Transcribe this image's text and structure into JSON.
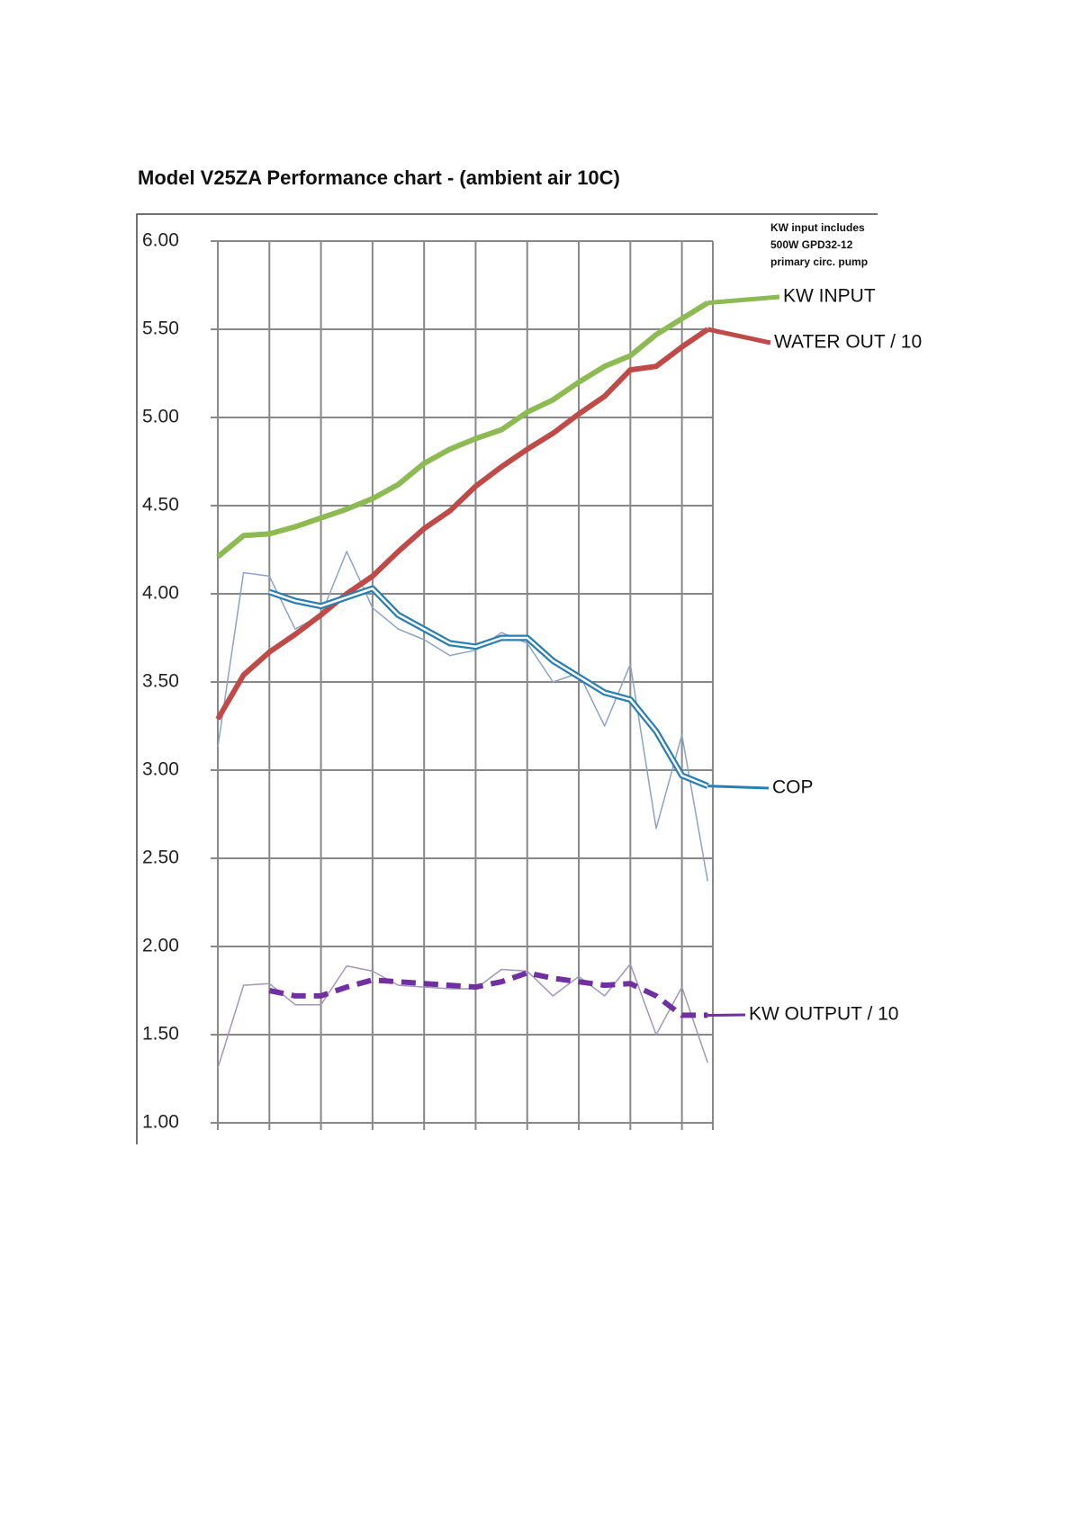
{
  "chart_data": {
    "type": "line",
    "title": "Model V25ZA Performance chart - (ambient air 10C)",
    "annotation": [
      "KW input includes",
      "500W GPD32-12",
      "primary circ. pump"
    ],
    "x": [
      0,
      0.5,
      1,
      1.5,
      2,
      2.5,
      3,
      3.5,
      4,
      4.5,
      5,
      5.5,
      6,
      6.5,
      7,
      7.5,
      8,
      8.5,
      9,
      9.5
    ],
    "xlim": [
      0,
      9.6
    ],
    "xticks": [
      0,
      1,
      2,
      3,
      4,
      5,
      6,
      7,
      8,
      9
    ],
    "ylim": [
      1,
      6
    ],
    "yticks": [
      {
        "value": 1,
        "label": "1.00"
      },
      {
        "value": 1.5,
        "label": "1.50"
      },
      {
        "value": 2,
        "label": "2.00"
      },
      {
        "value": 2.5,
        "label": "2.50"
      },
      {
        "value": 3,
        "label": "3.00"
      },
      {
        "value": 3.5,
        "label": "3.50"
      },
      {
        "value": 4,
        "label": "4.00"
      },
      {
        "value": 4.5,
        "label": "4.50"
      },
      {
        "value": 5,
        "label": "5.00"
      },
      {
        "value": 5.5,
        "label": "5.50"
      },
      {
        "value": 6,
        "label": "6.00"
      }
    ],
    "grid": true,
    "series": [
      {
        "color": "#8ca3c8",
        "style": "thin",
        "values": [
          3.13,
          4.12,
          4.1,
          3.8,
          3.88,
          4.24,
          3.92,
          3.8,
          3.74,
          3.65,
          3.68,
          3.78,
          3.72,
          3.5,
          3.55,
          3.25,
          3.6,
          2.67,
          3.2,
          2.37
        ]
      },
      {
        "color": "#a396b8",
        "style": "thin",
        "values": [
          1.31,
          1.78,
          1.79,
          1.67,
          1.67,
          1.89,
          1.86,
          1.78,
          1.77,
          1.76,
          1.76,
          1.87,
          1.86,
          1.72,
          1.83,
          1.72,
          1.9,
          1.5,
          1.77,
          1.34
        ]
      },
      {
        "name": "KW INPUT",
        "color": "#8dba53",
        "style": "solid",
        "values": [
          4.21,
          4.33,
          4.34,
          4.38,
          4.43,
          4.48,
          4.54,
          4.62,
          4.74,
          4.82,
          4.88,
          4.93,
          5.03,
          5.1,
          5.2,
          5.29,
          5.35,
          5.47,
          5.56,
          5.65
        ]
      },
      {
        "name": "WATER OUT / 10",
        "color": "#be4b48",
        "style": "solid",
        "values": [
          3.29,
          3.54,
          3.67,
          3.77,
          3.88,
          4.0,
          4.1,
          4.24,
          4.37,
          4.47,
          4.61,
          4.72,
          4.82,
          4.91,
          5.02,
          5.12,
          5.27,
          5.29,
          5.4,
          5.5
        ]
      },
      {
        "name": "COP",
        "color": "#2b7fb0",
        "style": "double",
        "values": [
          null,
          null,
          4.01,
          3.96,
          3.93,
          3.98,
          4.03,
          3.88,
          3.8,
          3.72,
          3.7,
          3.75,
          3.75,
          3.62,
          3.53,
          3.44,
          3.4,
          3.22,
          2.97,
          2.91
        ]
      },
      {
        "name": "KW OUTPUT / 10",
        "color": "#7030a0",
        "style": "dashed",
        "values": [
          null,
          null,
          1.75,
          1.72,
          1.72,
          1.77,
          1.81,
          1.8,
          1.79,
          1.78,
          1.77,
          1.8,
          1.85,
          1.82,
          1.8,
          1.78,
          1.79,
          1.72,
          1.61,
          1.61
        ]
      }
    ]
  }
}
